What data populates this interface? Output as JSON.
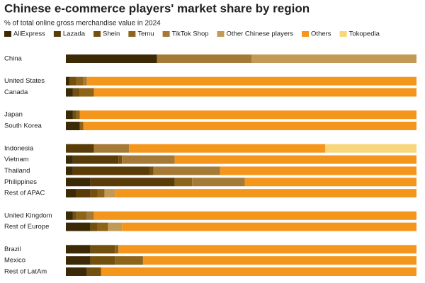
{
  "chart_data": {
    "type": "bar",
    "orientation": "horizontal",
    "stacked": true,
    "title": "Chinese e-commerce players' market share by region",
    "subtitle": "% of total online gross merchandise value in 2024",
    "categories": [
      "China",
      null,
      "United States",
      "Canada",
      null,
      "Japan",
      "South Korea",
      null,
      "Indonesia",
      "Vietnam",
      "Thailand",
      "Philippines",
      "Rest of APAC",
      null,
      "United Kingdom",
      "Rest of Europe",
      null,
      "Brazil",
      "Mexico",
      "Rest of LatAm"
    ],
    "xlim": [
      0,
      100
    ],
    "series": [
      {
        "name": "AliExpress",
        "color": "#3b2a05",
        "values": [
          26,
          null,
          1,
          2,
          null,
          2,
          4,
          null,
          0,
          2,
          2,
          7,
          3,
          null,
          2,
          7,
          null,
          7,
          7,
          6
        ]
      },
      {
        "name": "Lazada",
        "color": "#5a3c08",
        "values": [
          0,
          null,
          0,
          0,
          null,
          0,
          0,
          null,
          8,
          13,
          22,
          24,
          4,
          null,
          0,
          0,
          null,
          0,
          0,
          0
        ]
      },
      {
        "name": "Shein",
        "color": "#74500f",
        "values": [
          0,
          null,
          2,
          2,
          null,
          1,
          0,
          null,
          0,
          1,
          1,
          0,
          2,
          null,
          1,
          2,
          null,
          7,
          7,
          4
        ]
      },
      {
        "name": "Temu",
        "color": "#8e631a",
        "values": [
          0,
          null,
          2,
          4,
          null,
          1,
          1,
          null,
          0,
          0,
          0,
          5,
          2,
          null,
          3,
          3,
          null,
          1,
          8,
          0
        ]
      },
      {
        "name": "TikTok Shop",
        "color": "#a57a36",
        "values": [
          27,
          null,
          1,
          0,
          null,
          0,
          0,
          null,
          10,
          15,
          19,
          15,
          0,
          null,
          2,
          0,
          null,
          0,
          0,
          0
        ]
      },
      {
        "name": "Other Chinese players",
        "color": "#c29a55",
        "values": [
          47,
          null,
          0,
          0,
          null,
          0,
          0,
          null,
          0,
          0,
          0,
          0,
          3,
          null,
          0,
          4,
          null,
          0,
          0,
          0
        ]
      },
      {
        "name": "Others",
        "color": "#f5961c",
        "values": [
          0,
          null,
          94,
          92,
          null,
          96,
          95,
          null,
          56,
          69,
          56,
          49,
          86,
          null,
          92,
          84,
          null,
          85,
          78,
          90
        ]
      },
      {
        "name": "Tokopedia",
        "color": "#f8d77a",
        "values": [
          0,
          null,
          0,
          0,
          null,
          0,
          0,
          null,
          26,
          0,
          0,
          0,
          0,
          null,
          0,
          0,
          null,
          0,
          0,
          0
        ]
      }
    ]
  }
}
